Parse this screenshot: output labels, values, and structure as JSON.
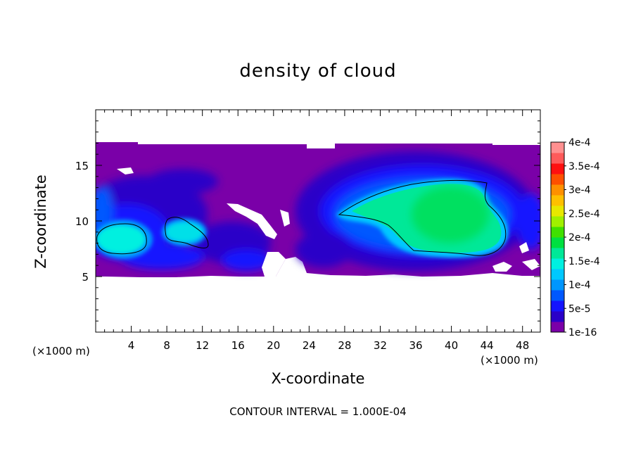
{
  "chart_data": {
    "type": "heatmap",
    "title": "density of cloud",
    "xlabel": "X-coordinate",
    "ylabel": "Z-coordinate",
    "x_unit": "(×1000 m)",
    "footnote": "CONTOUR INTERVAL = 1.000E-04",
    "xlim": [
      0,
      50
    ],
    "ylim": [
      0,
      20
    ],
    "x_ticks": [
      4,
      8,
      12,
      16,
      20,
      24,
      28,
      32,
      36,
      40,
      44,
      48
    ],
    "y_ticks": [
      5,
      10,
      15
    ],
    "colorbar": {
      "labels": [
        "1e-16",
        "5e-5",
        "1e-4",
        "1.5e-4",
        "2e-4",
        "2.5e-4",
        "3e-4",
        "3.5e-4",
        "4e-4"
      ],
      "colors": [
        "#7a00a8",
        "#2a00c8",
        "#1414ff",
        "#0058ff",
        "#0096ff",
        "#00c8ff",
        "#00f0e0",
        "#00e898",
        "#00e040",
        "#40e000",
        "#a0f000",
        "#e8e800",
        "#ffc000",
        "#ff9000",
        "#ff5000",
        "#ff1010",
        "#ff5a5a",
        "#ff9090"
      ]
    },
    "cloud_layer": {
      "z_base": 5,
      "z_top": 17
    },
    "regions": [
      {
        "x_range": [
          0,
          20
        ],
        "z_range": [
          6,
          14
        ],
        "peak_density": 0.00015
      },
      {
        "x_range": [
          27,
          47
        ],
        "z_range": [
          7,
          13.5
        ],
        "peak_density": 0.00022
      }
    ],
    "contour_line_level": 0.0001
  }
}
